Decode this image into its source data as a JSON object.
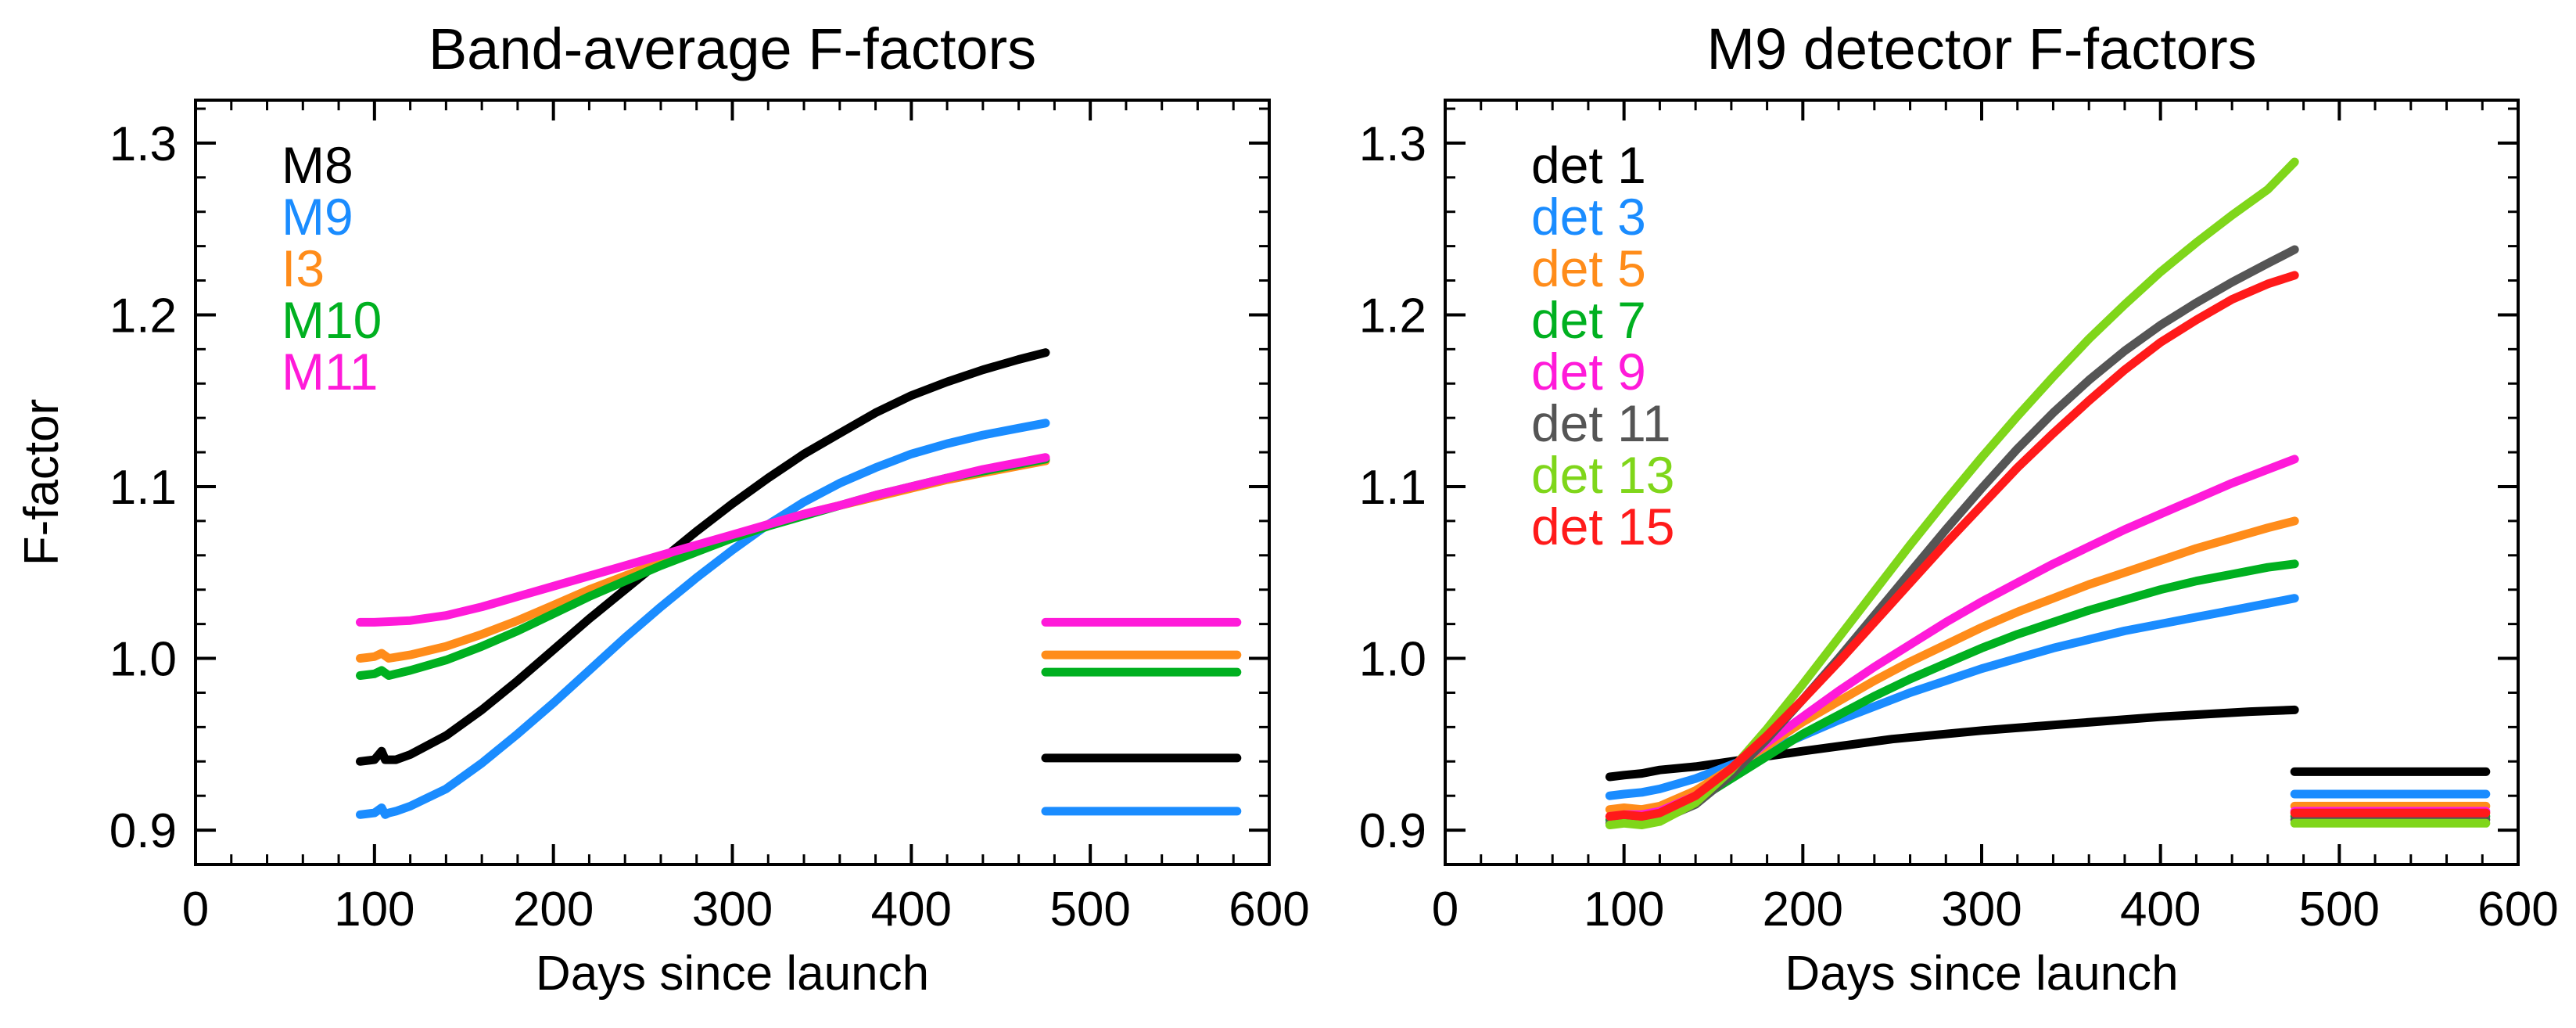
{
  "chart_data": [
    {
      "id": "left",
      "type": "line",
      "title": "Band-average F-factors",
      "xlabel": "Days since launch",
      "ylabel": "F-factor",
      "xlim": [
        0,
        600
      ],
      "ylim": [
        0.88,
        1.325
      ],
      "xticks": [
        0,
        100,
        200,
        300,
        400,
        500,
        600
      ],
      "yticks": [
        0.9,
        1.0,
        1.1,
        1.2,
        1.3
      ],
      "xtick_labels": [
        "0",
        "100",
        "200",
        "300",
        "400",
        "500",
        "600"
      ],
      "ytick_labels": [
        "0.9",
        "1.0",
        "1.1",
        "1.2",
        "1.3"
      ],
      "legend_position": "top-left",
      "series": [
        {
          "name": "M8",
          "color": "#000000",
          "x": [
            92,
            100,
            104,
            106,
            108,
            112,
            120,
            140,
            160,
            180,
            200,
            220,
            240,
            260,
            280,
            300,
            320,
            340,
            360,
            380,
            400,
            420,
            440,
            460,
            475
          ],
          "y": [
            0.94,
            0.941,
            0.946,
            0.941,
            0.941,
            0.941,
            0.944,
            0.955,
            0.97,
            0.987,
            1.005,
            1.023,
            1.04,
            1.057,
            1.074,
            1.09,
            1.105,
            1.119,
            1.131,
            1.143,
            1.153,
            1.161,
            1.168,
            1.174,
            1.178
          ],
          "x2": [
            475,
            500,
            550,
            582
          ],
          "y2": [
            0.942,
            0.942,
            0.942,
            0.942
          ]
        },
        {
          "name": "M9",
          "color": "#1a8cff",
          "x": [
            92,
            100,
            104,
            106,
            108,
            112,
            120,
            140,
            160,
            180,
            200,
            220,
            240,
            260,
            280,
            300,
            320,
            340,
            360,
            380,
            400,
            420,
            440,
            460,
            475
          ],
          "y": [
            0.909,
            0.91,
            0.913,
            0.909,
            0.91,
            0.911,
            0.914,
            0.924,
            0.939,
            0.956,
            0.974,
            0.993,
            1.012,
            1.03,
            1.047,
            1.063,
            1.078,
            1.091,
            1.102,
            1.111,
            1.119,
            1.125,
            1.13,
            1.134,
            1.137
          ],
          "x2": [
            475,
            500,
            550,
            582
          ],
          "y2": [
            0.911,
            0.911,
            0.911,
            0.911
          ]
        },
        {
          "name": "I3",
          "color": "#ff8c1a",
          "x": [
            92,
            100,
            104,
            108,
            120,
            140,
            160,
            180,
            200,
            220,
            240,
            260,
            280,
            300,
            320,
            340,
            360,
            380,
            400,
            420,
            440,
            460,
            475
          ],
          "y": [
            1.0,
            1.001,
            1.003,
            1.0,
            1.002,
            1.007,
            1.014,
            1.022,
            1.031,
            1.04,
            1.048,
            1.056,
            1.064,
            1.071,
            1.078,
            1.084,
            1.089,
            1.094,
            1.099,
            1.104,
            1.108,
            1.112,
            1.115
          ],
          "x2": [
            475,
            500,
            550,
            582
          ],
          "y2": [
            1.002,
            1.002,
            1.002,
            1.002
          ]
        },
        {
          "name": "M10",
          "color": "#00b020",
          "x": [
            92,
            100,
            104,
            108,
            120,
            140,
            160,
            180,
            200,
            220,
            240,
            260,
            280,
            300,
            320,
            340,
            360,
            380,
            400,
            420,
            440,
            460,
            475
          ],
          "y": [
            0.99,
            0.991,
            0.993,
            0.99,
            0.993,
            0.999,
            1.007,
            1.016,
            1.026,
            1.036,
            1.045,
            1.054,
            1.062,
            1.07,
            1.077,
            1.083,
            1.089,
            1.095,
            1.1,
            1.105,
            1.109,
            1.113,
            1.116
          ],
          "x2": [
            475,
            500,
            550,
            582
          ],
          "y2": [
            0.992,
            0.992,
            0.992,
            0.992
          ]
        },
        {
          "name": "M11",
          "color": "#ff1ad9",
          "x": [
            92,
            100,
            120,
            140,
            160,
            180,
            200,
            220,
            240,
            260,
            280,
            300,
            320,
            340,
            360,
            380,
            400,
            420,
            440,
            460,
            475
          ],
          "y": [
            1.021,
            1.021,
            1.022,
            1.025,
            1.03,
            1.036,
            1.042,
            1.048,
            1.054,
            1.06,
            1.066,
            1.072,
            1.078,
            1.084,
            1.089,
            1.095,
            1.1,
            1.105,
            1.11,
            1.114,
            1.117
          ],
          "x2": [
            475,
            500,
            550,
            582
          ],
          "y2": [
            1.021,
            1.021,
            1.021,
            1.021
          ]
        }
      ]
    },
    {
      "id": "right",
      "type": "line",
      "title": "M9 detector F-factors",
      "xlabel": "Days since launch",
      "ylabel": "",
      "xlim": [
        0,
        600
      ],
      "ylim": [
        0.88,
        1.325
      ],
      "xticks": [
        0,
        100,
        200,
        300,
        400,
        500,
        600
      ],
      "yticks": [
        0.9,
        1.0,
        1.1,
        1.2,
        1.3
      ],
      "xtick_labels": [
        "0",
        "100",
        "200",
        "300",
        "400",
        "500",
        "600"
      ],
      "ytick_labels": [
        "0.9",
        "1.0",
        "1.1",
        "1.2",
        "1.3"
      ],
      "legend_position": "top-left",
      "series": [
        {
          "name": "det 1",
          "color": "#000000",
          "x": [
            92,
            100,
            110,
            120,
            140,
            160,
            180,
            200,
            250,
            300,
            350,
            400,
            450,
            475
          ],
          "y": [
            0.931,
            0.932,
            0.933,
            0.935,
            0.937,
            0.94,
            0.943,
            0.946,
            0.953,
            0.958,
            0.962,
            0.966,
            0.969,
            0.97
          ],
          "x2": [
            475,
            500,
            550,
            582
          ],
          "y2": [
            0.934,
            0.934,
            0.934,
            0.934
          ]
        },
        {
          "name": "det 3",
          "color": "#1a8cff",
          "x": [
            92,
            100,
            110,
            120,
            140,
            160,
            180,
            200,
            220,
            240,
            260,
            280,
            300,
            320,
            340,
            360,
            380,
            400,
            420,
            440,
            460,
            475
          ],
          "y": [
            0.92,
            0.921,
            0.922,
            0.924,
            0.93,
            0.938,
            0.946,
            0.955,
            0.964,
            0.972,
            0.98,
            0.987,
            0.994,
            1.0,
            1.006,
            1.011,
            1.016,
            1.02,
            1.024,
            1.028,
            1.032,
            1.035
          ],
          "x2": [
            475,
            500,
            550,
            582
          ],
          "y2": [
            0.921,
            0.921,
            0.921,
            0.921
          ]
        },
        {
          "name": "det 5",
          "color": "#ff8c1a",
          "x": [
            92,
            100,
            110,
            120,
            140,
            160,
            180,
            200,
            220,
            240,
            260,
            280,
            300,
            320,
            340,
            360,
            380,
            400,
            420,
            440,
            460,
            475
          ],
          "y": [
            0.912,
            0.913,
            0.912,
            0.914,
            0.923,
            0.936,
            0.949,
            0.963,
            0.975,
            0.987,
            0.998,
            1.008,
            1.018,
            1.027,
            1.035,
            1.043,
            1.05,
            1.057,
            1.064,
            1.07,
            1.076,
            1.08
          ],
          "x2": [
            475,
            500,
            550,
            582
          ],
          "y2": [
            0.914,
            0.914,
            0.914,
            0.914
          ]
        },
        {
          "name": "det 7",
          "color": "#00b020",
          "x": [
            92,
            100,
            110,
            120,
            140,
            160,
            180,
            200,
            220,
            240,
            260,
            280,
            300,
            320,
            340,
            360,
            380,
            400,
            420,
            440,
            460,
            475
          ],
          "y": [
            0.906,
            0.907,
            0.906,
            0.908,
            0.917,
            0.93,
            0.943,
            0.956,
            0.967,
            0.978,
            0.988,
            0.997,
            1.006,
            1.014,
            1.021,
            1.028,
            1.034,
            1.04,
            1.045,
            1.049,
            1.053,
            1.055
          ],
          "x2": [
            475,
            500,
            550,
            582
          ],
          "y2": [
            0.908,
            0.908,
            0.908,
            0.908
          ]
        },
        {
          "name": "det 9",
          "color": "#ff1ad9",
          "x": [
            92,
            100,
            110,
            120,
            140,
            160,
            180,
            200,
            220,
            240,
            260,
            280,
            300,
            320,
            340,
            360,
            380,
            400,
            420,
            440,
            460,
            475
          ],
          "y": [
            0.908,
            0.909,
            0.909,
            0.911,
            0.92,
            0.935,
            0.951,
            0.966,
            0.981,
            0.995,
            1.008,
            1.021,
            1.033,
            1.044,
            1.055,
            1.065,
            1.075,
            1.084,
            1.093,
            1.102,
            1.11,
            1.116
          ],
          "x2": [
            475,
            500,
            550,
            582
          ],
          "y2": [
            0.911,
            0.911,
            0.911,
            0.911
          ]
        },
        {
          "name": "det 11",
          "color": "#555555",
          "x": [
            92,
            100,
            110,
            120,
            140,
            160,
            180,
            200,
            220,
            240,
            260,
            280,
            300,
            320,
            340,
            360,
            380,
            400,
            420,
            440,
            460,
            475
          ],
          "y": [
            0.904,
            0.905,
            0.904,
            0.906,
            0.915,
            0.932,
            0.953,
            0.976,
            1.0,
            1.025,
            1.05,
            1.075,
            1.099,
            1.122,
            1.143,
            1.162,
            1.179,
            1.194,
            1.207,
            1.219,
            1.23,
            1.238
          ],
          "x2": [
            475,
            500,
            550,
            582
          ],
          "y2": [
            0.906,
            0.906,
            0.906,
            0.906
          ]
        },
        {
          "name": "det 13",
          "color": "#7fd61a",
          "x": [
            92,
            100,
            110,
            120,
            140,
            160,
            180,
            200,
            220,
            240,
            260,
            280,
            300,
            320,
            340,
            360,
            380,
            400,
            420,
            440,
            460,
            475
          ],
          "y": [
            0.903,
            0.904,
            0.903,
            0.905,
            0.916,
            0.935,
            0.959,
            0.985,
            1.012,
            1.039,
            1.066,
            1.092,
            1.117,
            1.141,
            1.164,
            1.186,
            1.206,
            1.225,
            1.242,
            1.258,
            1.273,
            1.289
          ],
          "x2": [
            475,
            500,
            550,
            582
          ],
          "y2": [
            0.904,
            0.904,
            0.904,
            0.904
          ]
        },
        {
          "name": "det 15",
          "color": "#ff1a1a",
          "x": [
            92,
            100,
            110,
            120,
            140,
            160,
            180,
            200,
            220,
            240,
            260,
            280,
            300,
            320,
            340,
            360,
            380,
            400,
            420,
            440,
            460,
            475
          ],
          "y": [
            0.908,
            0.909,
            0.908,
            0.91,
            0.92,
            0.936,
            0.955,
            0.976,
            0.998,
            1.021,
            1.044,
            1.067,
            1.089,
            1.111,
            1.131,
            1.15,
            1.168,
            1.184,
            1.197,
            1.209,
            1.218,
            1.223
          ],
          "x2": [
            475,
            500,
            550,
            582
          ],
          "y2": [
            0.91,
            0.91,
            0.91,
            0.91
          ]
        }
      ]
    }
  ]
}
